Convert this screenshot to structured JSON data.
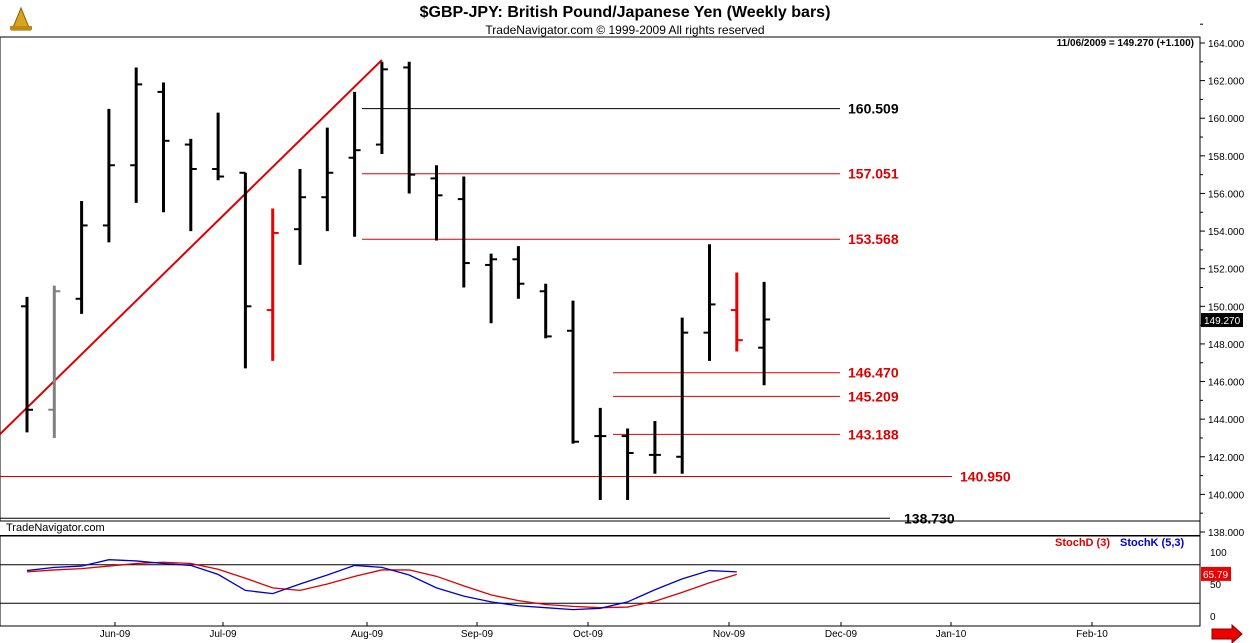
{
  "header": {
    "title": "$GBP-JPY:  British Pound/Japanese Yen  (Weekly bars)",
    "subtitle": "TradeNavigator.com © 1999-2009 All rights reserved",
    "quote": "11/06/2009 = 149.270 (+1.100)",
    "watermark": "TradeNavigator.com"
  },
  "chart_data": [
    {
      "type": "ohlc",
      "title": "$GBP-JPY:  British Pound/Japanese Yen  (Weekly bars)",
      "y_axis": {
        "ticks": [
          "138.000",
          "140.000",
          "142.000",
          "144.000",
          "146.000",
          "148.000",
          "150.000",
          "152.000",
          "154.000",
          "156.000",
          "158.000",
          "160.000",
          "162.000",
          "164.000"
        ],
        "ylim": [
          137,
          164.5
        ]
      },
      "x_axis": {
        "ticks": [
          "Jun-09",
          "Jul-09",
          "Aug-09",
          "Sep-09",
          "Oct-09",
          "Nov-09",
          "Dec-09",
          "Jan-10",
          "Feb-10"
        ]
      },
      "last_price_label": "149.270",
      "bars": [
        {
          "o": 150,
          "h": 150.5,
          "l": 143.3,
          "c": 144.5,
          "color": "#000000"
        },
        {
          "o": 144.5,
          "h": 151.1,
          "l": 143,
          "c": 150.8,
          "color": "#808080"
        },
        {
          "o": 150.4,
          "h": 155.6,
          "l": 149.6,
          "c": 154.3,
          "color": "#000000"
        },
        {
          "o": 154.3,
          "h": 160.5,
          "l": 153.4,
          "c": 157.5,
          "color": "#000000"
        },
        {
          "o": 157.5,
          "h": 162.7,
          "l": 155.5,
          "c": 161.8,
          "color": "#000000"
        },
        {
          "o": 161.4,
          "h": 161.9,
          "l": 155,
          "c": 158.8,
          "color": "#000000"
        },
        {
          "o": 158.6,
          "h": 158.9,
          "l": 154,
          "c": 157.3,
          "color": "#000000"
        },
        {
          "o": 157.3,
          "h": 160.3,
          "l": 156.7,
          "c": 156.9,
          "color": "#000000"
        },
        {
          "o": 157.1,
          "h": 157.1,
          "l": 146.7,
          "c": 150,
          "color": "#000000"
        },
        {
          "o": 149.8,
          "h": 155.2,
          "l": 147.1,
          "c": 153.9,
          "color": "#ee0000"
        },
        {
          "o": 154.1,
          "h": 157.3,
          "l": 152.2,
          "c": 155.8,
          "color": "#000000"
        },
        {
          "o": 155.8,
          "h": 159.5,
          "l": 154,
          "c": 157.1,
          "color": "#000000"
        },
        {
          "o": 157.9,
          "h": 161.4,
          "l": 153.7,
          "c": 158.3,
          "color": "#000000"
        },
        {
          "o": 158.6,
          "h": 163,
          "l": 158.1,
          "c": 162.6,
          "color": "#000000"
        },
        {
          "o": 162.7,
          "h": 163,
          "l": 156,
          "c": 157,
          "color": "#000000"
        },
        {
          "o": 156.8,
          "h": 157.5,
          "l": 153.5,
          "c": 155.9,
          "color": "#000000"
        },
        {
          "o": 155.7,
          "h": 156.9,
          "l": 151,
          "c": 152.3,
          "color": "#000000"
        },
        {
          "o": 152.2,
          "h": 152.8,
          "l": 149.1,
          "c": 152.5,
          "color": "#000000"
        },
        {
          "o": 152.5,
          "h": 153.2,
          "l": 150.4,
          "c": 151.2,
          "color": "#000000"
        },
        {
          "o": 150.8,
          "h": 151.2,
          "l": 148.3,
          "c": 148.4,
          "color": "#000000"
        },
        {
          "o": 148.7,
          "h": 150.3,
          "l": 142.7,
          "c": 142.8,
          "color": "#000000"
        },
        {
          "o": 143.1,
          "h": 144.6,
          "l": 139.7,
          "c": 143.1,
          "color": "#000000"
        },
        {
          "o": 143.1,
          "h": 143.5,
          "l": 139.7,
          "c": 142.2,
          "color": "#000000"
        },
        {
          "o": 142.1,
          "h": 143.9,
          "l": 141.1,
          "c": 142.1,
          "color": "#000000"
        },
        {
          "o": 142,
          "h": 149.4,
          "l": 141.1,
          "c": 148.6,
          "color": "#000000"
        },
        {
          "o": 148.6,
          "h": 153.3,
          "l": 147.1,
          "c": 150.1,
          "color": "#000000"
        },
        {
          "o": 149.8,
          "h": 151.8,
          "l": 147.6,
          "c": 148.2,
          "color": "#ee0000"
        },
        {
          "o": 147.8,
          "h": 151.3,
          "l": 145.8,
          "c": 149.3,
          "color": "#000000"
        }
      ],
      "levels": [
        {
          "value": 160.509,
          "label": "160.509",
          "color": "#000000"
        },
        {
          "value": 157.051,
          "label": "157.051",
          "color": "#dd0000"
        },
        {
          "value": 153.568,
          "label": "153.568",
          "color": "#dd0000"
        },
        {
          "value": 146.47,
          "label": "146.470",
          "color": "#dd0000"
        },
        {
          "value": 145.209,
          "label": "145.209",
          "color": "#dd0000"
        },
        {
          "value": 143.188,
          "label": "143.188",
          "color": "#dd0000"
        },
        {
          "value": 140.95,
          "label": "140.950",
          "color": "#dd0000"
        },
        {
          "value": 138.73,
          "label": "138.730",
          "color": "#000000"
        }
      ]
    },
    {
      "type": "line",
      "title": "",
      "series": [
        {
          "name": "StochD (3)",
          "color": "#dd0000"
        },
        {
          "name": "StochK (5,3)",
          "color": "#0000cc"
        }
      ],
      "y_axis": {
        "ticks": [
          "100",
          "50",
          "0"
        ],
        "ylim": [
          0,
          100
        ]
      },
      "last_value_label": "65.79",
      "guide_lines": [
        80,
        20
      ],
      "stochK": [
        71,
        76,
        78,
        88,
        86,
        82,
        79,
        65,
        40,
        35,
        50,
        64,
        79,
        76,
        64,
        44,
        31,
        22,
        16,
        13,
        10,
        12,
        22,
        41,
        58,
        71,
        69
      ],
      "stochD": [
        69,
        72,
        74,
        78,
        82,
        84,
        82,
        73,
        59,
        44,
        40,
        50,
        62,
        72,
        72,
        62,
        47,
        33,
        24,
        18,
        15,
        13,
        14,
        23,
        37,
        52,
        65
      ]
    }
  ],
  "legend": {
    "stochD": "StochD (3)",
    "stochK": "StochK (5,3)"
  },
  "nav": {
    "forward_arrow": "forward-arrow-icon"
  }
}
